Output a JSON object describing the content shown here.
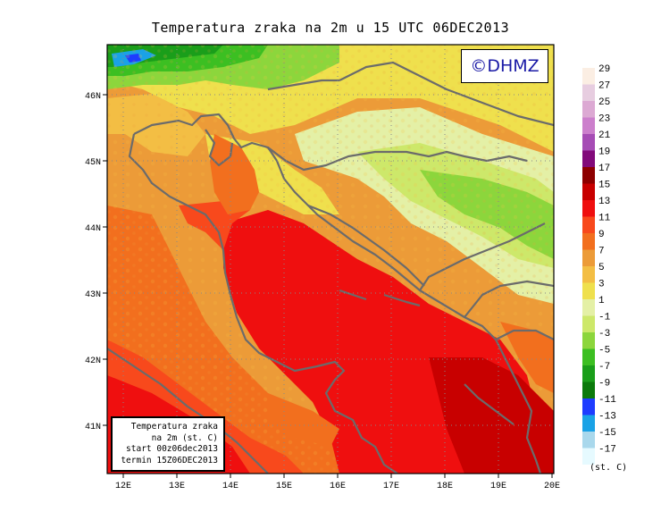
{
  "title": "Temperatura zraka na 2m u 15 UTC 06DEC2013",
  "brand": "©DHMZ",
  "info_box": {
    "line1": "Temperatura zraka",
    "line2": "na 2m (st. C)",
    "line3": "start 00z06dec2013",
    "line4": "termin 15Z06DEC2013"
  },
  "lat_labels": [
    "46N",
    "45N",
    "44N",
    "43N",
    "42N",
    "41N"
  ],
  "lon_labels": [
    "12E",
    "13E",
    "14E",
    "15E",
    "16E",
    "17E",
    "18E",
    "19E",
    "20E"
  ],
  "legend": {
    "unit": "(st. C)",
    "bins": [
      {
        "label": "29",
        "color": "#fbeee3"
      },
      {
        "label": "27",
        "color": "#e7cde0"
      },
      {
        "label": "25",
        "color": "#dca9d3"
      },
      {
        "label": "23",
        "color": "#cc7fcc"
      },
      {
        "label": "21",
        "color": "#a64cb5"
      },
      {
        "label": "19",
        "color": "#820a7a"
      },
      {
        "label": "17",
        "color": "#8e0000"
      },
      {
        "label": "15",
        "color": "#c80000"
      },
      {
        "label": "13",
        "color": "#ef0f0f"
      },
      {
        "label": "11",
        "color": "#f8491c"
      },
      {
        "label": "9",
        "color": "#f26f1e"
      },
      {
        "label": "7",
        "color": "#ec9b38"
      },
      {
        "label": "5",
        "color": "#f3be44"
      },
      {
        "label": "3",
        "color": "#efe04d"
      },
      {
        "label": "1",
        "color": "#e4f0a6"
      },
      {
        "label": "-1",
        "color": "#cde86a"
      },
      {
        "label": "-3",
        "color": "#8cd63c"
      },
      {
        "label": "-5",
        "color": "#3cbf22"
      },
      {
        "label": "-7",
        "color": "#1a9e1a"
      },
      {
        "label": "-9",
        "color": "#0b7a0b"
      },
      {
        "label": "-11",
        "color": "#1e3cff"
      },
      {
        "label": "-13",
        "color": "#1aa2e6"
      },
      {
        "label": "-15",
        "color": "#a9d8ec"
      },
      {
        "label": "-17",
        "color": "#e6faff"
      }
    ]
  }
}
